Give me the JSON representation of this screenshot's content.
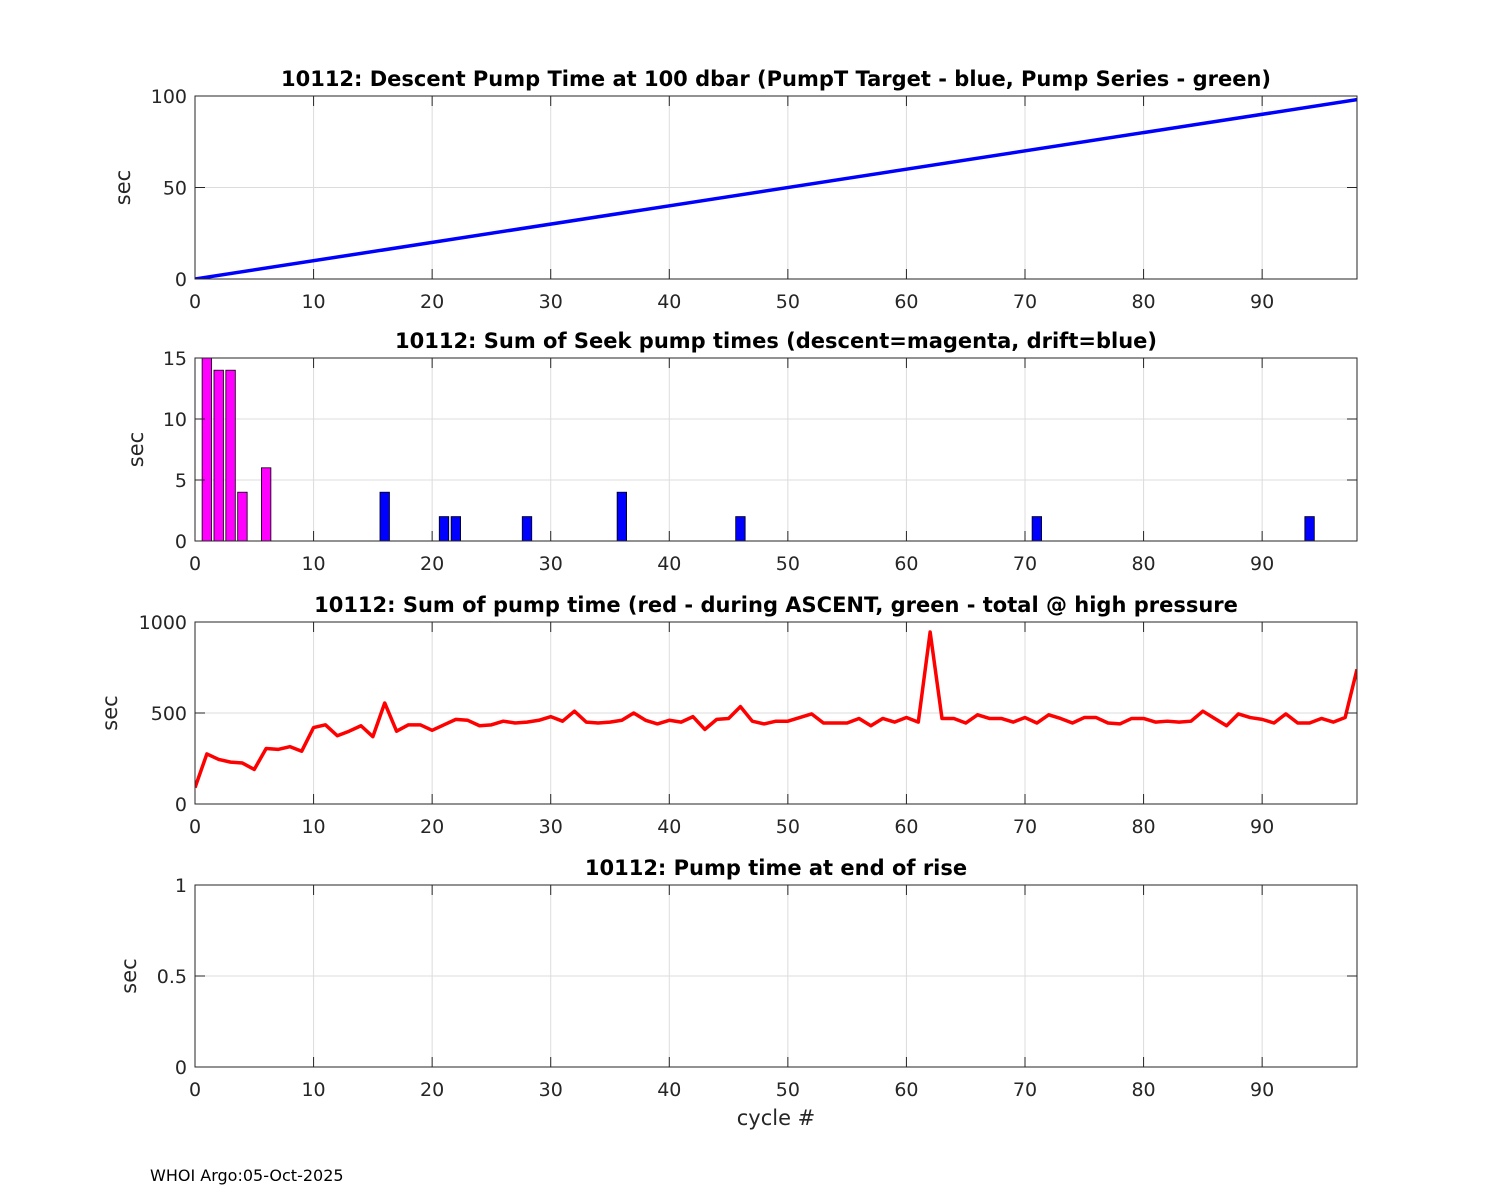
{
  "footer": "WHOI Argo:05-Oct-2025",
  "colors": {
    "blue": "#0000ff",
    "magenta": "#ff00ff",
    "red": "#ff0000",
    "grid": "#dcdcdc",
    "axis": "#262626"
  },
  "chart_data": [
    {
      "type": "line",
      "title": "10112: Descent Pump Time at 100 dbar (PumpT Target - blue, Pump Series - green)",
      "xlabel": "",
      "ylabel": "sec",
      "xlim": [
        0,
        98
      ],
      "ylim": [
        0,
        100
      ],
      "xticks": [
        0,
        10,
        20,
        30,
        40,
        50,
        60,
        70,
        80,
        90
      ],
      "yticks": [
        0,
        50,
        100
      ],
      "grid": true,
      "series": [
        {
          "color": "#0000ff",
          "x": [
            0,
            98
          ],
          "y": [
            0,
            98
          ]
        }
      ]
    },
    {
      "type": "bar",
      "title": "10112: Sum of Seek pump times (descent=magenta, drift=blue)",
      "xlabel": "",
      "ylabel": "sec",
      "xlim": [
        0,
        98
      ],
      "ylim": [
        0,
        15
      ],
      "xticks": [
        0,
        10,
        20,
        30,
        40,
        50,
        60,
        70,
        80,
        90
      ],
      "yticks": [
        0,
        5,
        10,
        15
      ],
      "grid": true,
      "series": [
        {
          "color": "#ff00ff",
          "x": [
            1,
            2,
            3,
            4,
            6
          ],
          "y": [
            15,
            14,
            14,
            4,
            6
          ]
        },
        {
          "color": "#0000ff",
          "x": [
            16,
            21,
            22,
            28,
            36,
            46,
            71,
            94
          ],
          "y": [
            4,
            2,
            2,
            2,
            4,
            2,
            2,
            2
          ]
        }
      ]
    },
    {
      "type": "line",
      "title": "10112: Sum of pump time (red - during ASCENT, green - total @ high pressure",
      "xlabel": "",
      "ylabel": "sec",
      "xlim": [
        0,
        98
      ],
      "ylim": [
        0,
        1000
      ],
      "xticks": [
        0,
        10,
        20,
        30,
        40,
        50,
        60,
        70,
        80,
        90
      ],
      "yticks": [
        0,
        500,
        1000
      ],
      "grid": true,
      "series": [
        {
          "color": "#ff0000",
          "x": [
            0,
            1,
            2,
            3,
            4,
            5,
            6,
            7,
            8,
            9,
            10,
            11,
            12,
            13,
            14,
            15,
            16,
            17,
            18,
            19,
            20,
            21,
            22,
            23,
            24,
            25,
            26,
            27,
            28,
            29,
            30,
            31,
            32,
            33,
            34,
            35,
            36,
            37,
            38,
            39,
            40,
            41,
            42,
            43,
            44,
            45,
            46,
            47,
            48,
            49,
            50,
            51,
            52,
            53,
            54,
            55,
            56,
            57,
            58,
            59,
            60,
            61,
            62,
            63,
            64,
            65,
            66,
            67,
            68,
            69,
            70,
            71,
            72,
            73,
            74,
            75,
            76,
            77,
            78,
            79,
            80,
            81,
            82,
            83,
            84,
            85,
            86,
            87,
            88,
            89,
            90,
            91,
            92,
            93,
            94,
            95,
            96,
            97,
            98
          ],
          "y": [
            90,
            275,
            245,
            230,
            225,
            190,
            305,
            300,
            315,
            290,
            420,
            435,
            375,
            400,
            430,
            370,
            555,
            400,
            435,
            435,
            405,
            435,
            465,
            460,
            430,
            435,
            455,
            445,
            450,
            460,
            480,
            455,
            510,
            450,
            445,
            450,
            460,
            500,
            460,
            440,
            460,
            450,
            480,
            410,
            465,
            470,
            535,
            455,
            440,
            455,
            455,
            475,
            495,
            445,
            445,
            445,
            470,
            430,
            470,
            450,
            475,
            450,
            945,
            470,
            470,
            445,
            490,
            470,
            470,
            450,
            475,
            445,
            490,
            470,
            445,
            475,
            475,
            445,
            440,
            470,
            470,
            450,
            455,
            450,
            455,
            510,
            470,
            430,
            495,
            475,
            465,
            445,
            495,
            445,
            445,
            470,
            450,
            475,
            740
          ]
        }
      ]
    },
    {
      "type": "line",
      "title": "10112: Pump time at end of rise",
      "xlabel": "cycle #",
      "ylabel": "sec",
      "xlim": [
        0,
        98
      ],
      "ylim": [
        0,
        1
      ],
      "xticks": [
        0,
        10,
        20,
        30,
        40,
        50,
        60,
        70,
        80,
        90
      ],
      "yticks": [
        0,
        0.5,
        1
      ],
      "grid": true,
      "series": []
    }
  ]
}
